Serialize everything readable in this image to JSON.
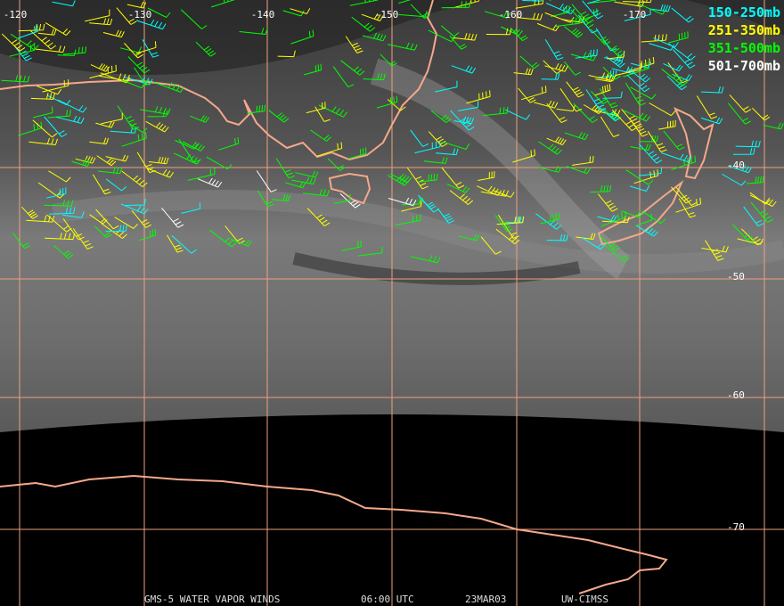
{
  "map": {
    "longitude_labels": [
      "-120",
      "-130",
      "-140",
      "-150",
      "-160",
      "-170"
    ],
    "latitude_labels": [
      "-40",
      "-50",
      "-60",
      "-70"
    ],
    "legend": [
      "150-250mb",
      "251-350mb",
      "351-500mb",
      "501-700mb"
    ],
    "footer": [
      "GMS-5 WATER VAPOR WINDS",
      "06:00 UTC",
      "23MAR03",
      "UW-CIMSS"
    ]
  }
}
